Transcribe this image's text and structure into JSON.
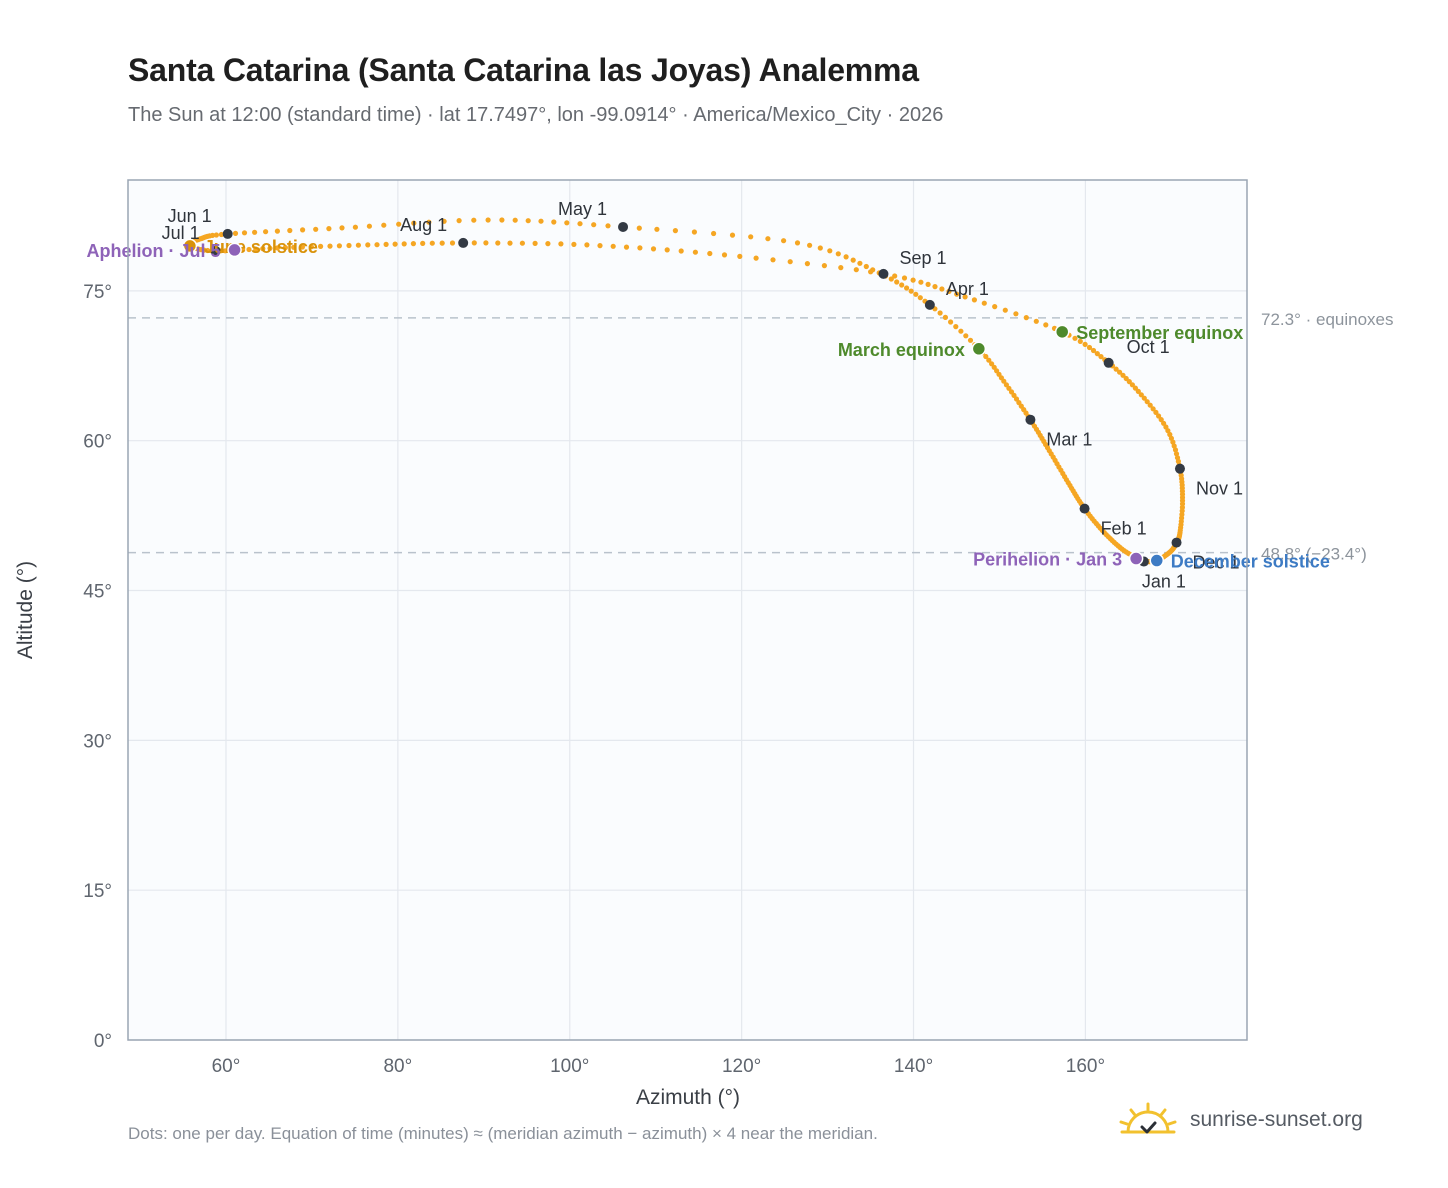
{
  "header": {
    "title": "Santa Catarina (Santa Catarina las Joyas) Analemma",
    "subtitle": "The Sun at 12:00 (standard time) · lat 17.7497°, lon -99.0914° · America/Mexico_City · 2026"
  },
  "footer": {
    "note": "Dots: one per day. Equation of time (minutes) ≈ (meridian azimuth − azimuth) × 4 near the meridian.",
    "brand": "sunrise-sunset.org"
  },
  "colors": {
    "curve": "#f5a623",
    "month_marker": "#333a44",
    "equinox": "#4e8a2c",
    "june_solstice": "#d9920a",
    "december_solstice": "#3d7bc4",
    "apsis": "#8e63b8",
    "refline": "#b9c2cc",
    "plot_bg": "#fafcfe",
    "grid": "#e4e8ee",
    "frame": "#9aa5b3",
    "logo": "#f2c12e"
  },
  "chart_data": {
    "type": "scatter",
    "xlabel": "Azimuth (°)",
    "ylabel": "Altitude (°)",
    "xlim": [
      48.6,
      178.8
    ],
    "ylim": [
      0,
      86.1
    ],
    "xticks": [
      60,
      80,
      100,
      120,
      140,
      160
    ],
    "yticks": [
      0,
      15,
      30,
      45,
      60,
      75
    ],
    "grid": true,
    "path": [
      {
        "date": "Jan 1",
        "az": 166.8,
        "alt": 47.9
      },
      {
        "date": "Jan 10",
        "az": 164.5,
        "alt": 49.0
      },
      {
        "date": "Jan 20",
        "az": 162.2,
        "alt": 50.8
      },
      {
        "date": "Feb 1",
        "az": 159.9,
        "alt": 53.2
      },
      {
        "date": "Feb 10",
        "az": 158.0,
        "alt": 55.8
      },
      {
        "date": "Feb 20",
        "az": 155.8,
        "alt": 59.0
      },
      {
        "date": "Mar 1",
        "az": 153.6,
        "alt": 62.1
      },
      {
        "date": "Mar 10",
        "az": 150.8,
        "alt": 65.6
      },
      {
        "date": "Mar 20",
        "az": 147.6,
        "alt": 69.2
      },
      {
        "date": "Apr 1",
        "az": 141.9,
        "alt": 73.6
      },
      {
        "date": "Apr 10",
        "az": 136.0,
        "alt": 76.8
      },
      {
        "date": "Apr 20",
        "az": 126.5,
        "alt": 79.8
      },
      {
        "date": "May 1",
        "az": 106.2,
        "alt": 81.4
      },
      {
        "date": "May 10",
        "az": 90.5,
        "alt": 82.1
      },
      {
        "date": "May 20",
        "az": 73.5,
        "alt": 81.3
      },
      {
        "date": "Jun 1",
        "az": 60.2,
        "alt": 80.7
      },
      {
        "date": "Jun 10",
        "az": 57.0,
        "alt": 80.2
      },
      {
        "date": "Jun 21",
        "az": 55.8,
        "alt": 79.5
      },
      {
        "date": "Jul 1",
        "az": 58.8,
        "alt": 79.0
      },
      {
        "date": "Jul 10",
        "az": 66.0,
        "alt": 79.3
      },
      {
        "date": "Jul 20",
        "az": 76.5,
        "alt": 79.6
      },
      {
        "date": "Aug 1",
        "az": 87.6,
        "alt": 79.8
      },
      {
        "date": "Aug 10",
        "az": 102.0,
        "alt": 79.6
      },
      {
        "date": "Aug 20",
        "az": 118.0,
        "alt": 78.6
      },
      {
        "date": "Sep 1",
        "az": 136.5,
        "alt": 76.7
      },
      {
        "date": "Sep 10",
        "az": 146.0,
        "alt": 74.4
      },
      {
        "date": "Sep 22",
        "az": 157.3,
        "alt": 70.9
      },
      {
        "date": "Oct 1",
        "az": 162.7,
        "alt": 67.8
      },
      {
        "date": "Oct 10",
        "az": 166.5,
        "alt": 64.6
      },
      {
        "date": "Oct 20",
        "az": 169.6,
        "alt": 61.0
      },
      {
        "date": "Nov 1",
        "az": 171.0,
        "alt": 57.2
      },
      {
        "date": "Nov 10",
        "az": 171.3,
        "alt": 54.0
      },
      {
        "date": "Nov 20",
        "az": 171.0,
        "alt": 50.8
      },
      {
        "date": "Dec 1",
        "az": 170.6,
        "alt": 49.8
      },
      {
        "date": "Dec 10",
        "az": 169.9,
        "alt": 48.9
      },
      {
        "date": "Dec 21",
        "az": 168.3,
        "alt": 48.0
      },
      {
        "date": "Dec 31",
        "az": 166.9,
        "alt": 47.9
      }
    ],
    "month_markers": [
      {
        "label": "Jan 1",
        "az": 166.8,
        "alt": 47.9,
        "anchor": "bottom"
      },
      {
        "label": "Feb 1",
        "az": 159.9,
        "alt": 53.2,
        "anchor": "below-right"
      },
      {
        "label": "Mar 1",
        "az": 153.6,
        "alt": 62.1,
        "anchor": "below-right"
      },
      {
        "label": "Apr 1",
        "az": 141.9,
        "alt": 73.6,
        "anchor": "above-right"
      },
      {
        "label": "May 1",
        "az": 106.2,
        "alt": 81.4,
        "anchor": "above-left"
      },
      {
        "label": "Jun 1",
        "az": 60.2,
        "alt": 80.7,
        "anchor": "above-left"
      },
      {
        "label": "Jul 1",
        "az": 58.8,
        "alt": 79.0,
        "anchor": "above-left"
      },
      {
        "label": "Aug 1",
        "az": 87.6,
        "alt": 79.8,
        "anchor": "above-left"
      },
      {
        "label": "Sep 1",
        "az": 136.5,
        "alt": 76.7,
        "anchor": "above-right"
      },
      {
        "label": "Oct 1",
        "az": 162.7,
        "alt": 67.8,
        "anchor": "right"
      },
      {
        "label": "Nov 1",
        "az": 171.0,
        "alt": 57.2,
        "anchor": "below-right"
      },
      {
        "label": "Dec 1",
        "az": 170.6,
        "alt": 49.8,
        "anchor": "below-right"
      }
    ],
    "events": [
      {
        "label": "March equinox",
        "az": 147.6,
        "alt": 69.2,
        "kind": "equinox",
        "anchor": "left"
      },
      {
        "label": "September equinox",
        "az": 157.3,
        "alt": 70.9,
        "kind": "equinox",
        "anchor": "right"
      },
      {
        "label": "June solstice",
        "az": 55.8,
        "alt": 79.5,
        "kind": "june_solstice",
        "anchor": "right"
      },
      {
        "label": "December solstice",
        "az": 168.3,
        "alt": 48.0,
        "kind": "december_solstice",
        "anchor": "right"
      },
      {
        "label": "Aphelion · Jul 5",
        "az": 61.0,
        "alt": 79.1,
        "kind": "apsis",
        "anchor": "left"
      },
      {
        "label": "Perihelion · Jan 3",
        "az": 165.9,
        "alt": 48.2,
        "kind": "apsis",
        "anchor": "left"
      }
    ],
    "reference_lines": [
      {
        "alt": 72.3,
        "label": "72.3° · equinoxes"
      },
      {
        "alt": 48.8,
        "label": "48.8° (−23.4°)"
      }
    ]
  }
}
